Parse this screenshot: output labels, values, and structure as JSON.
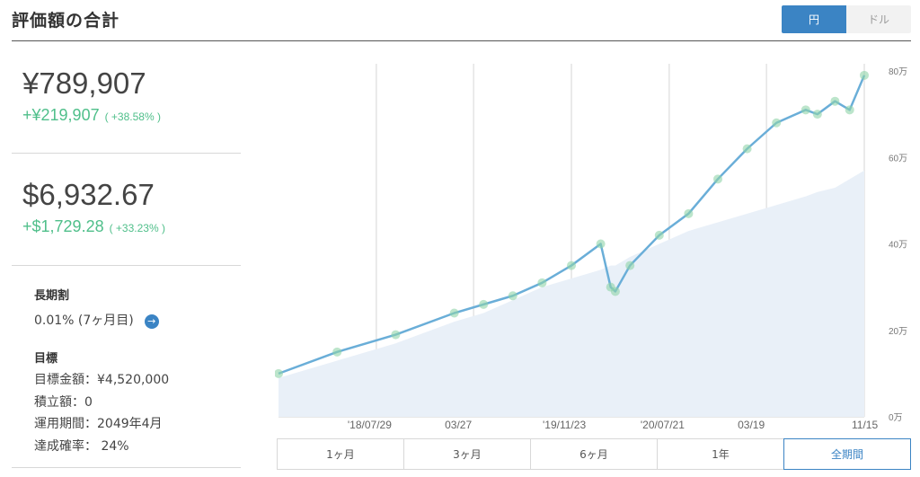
{
  "header": {
    "title": "評価額の合計",
    "currency_toggle": [
      "円",
      "ドル"
    ],
    "currency_selected": "円"
  },
  "summary": {
    "yen_total": "¥789,907",
    "yen_gain": "+¥219,907",
    "yen_gain_pct": "( +38.58% )",
    "usd_total": "$6,932.67",
    "usd_gain": "+$1,729.28",
    "usd_gain_pct": "( +33.23% )"
  },
  "long_term": {
    "heading": "長期割",
    "rate": "0.01% (7ヶ月目)"
  },
  "goal": {
    "heading": "目標",
    "amount": "目標金額：¥4,520,000",
    "saving": "積立額：0",
    "period": "運用期間：2049年4月",
    "probability": "達成確率： 24%"
  },
  "range_tabs": [
    "1ヶ月",
    "3ヶ月",
    "6ヶ月",
    "1年",
    "全期間"
  ],
  "range_selected": "全期間",
  "colors": {
    "accent": "#3b84c4",
    "gain": "#4fbf8a",
    "valuation_line": "#6aaed8",
    "invested_area": "#e9f0f8",
    "dot": "#8fd3a8"
  },
  "chart_data": {
    "type": "line",
    "x_tick_labels": [
      "'18/07/29",
      "03/27",
      "'19/11/23",
      "'20/07/21",
      "03/19",
      "11/15"
    ],
    "y_tick_labels": [
      "0万",
      "20万",
      "40万",
      "60万",
      "80万"
    ],
    "ylim": [
      0,
      80
    ],
    "y_unit": "万",
    "grid": "vertical",
    "x": [
      0,
      0.1,
      0.2,
      0.3,
      0.35,
      0.4,
      0.45,
      0.5,
      0.55,
      0.567,
      0.575,
      0.6,
      0.65,
      0.7,
      0.75,
      0.8,
      0.85,
      0.9,
      0.92,
      0.95,
      0.975,
      1.0
    ],
    "series": [
      {
        "values": [
          10,
          15,
          19,
          24,
          26,
          28,
          31,
          35,
          40,
          30,
          29,
          35,
          42,
          47,
          55,
          62,
          68,
          71,
          70,
          73,
          71,
          79
        ]
      },
      {
        "values": [
          9,
          13,
          17,
          22,
          24,
          27,
          30,
          32,
          34,
          35,
          35,
          37,
          40,
          43,
          45,
          47,
          49,
          51,
          52,
          53,
          55,
          57
        ]
      }
    ]
  }
}
